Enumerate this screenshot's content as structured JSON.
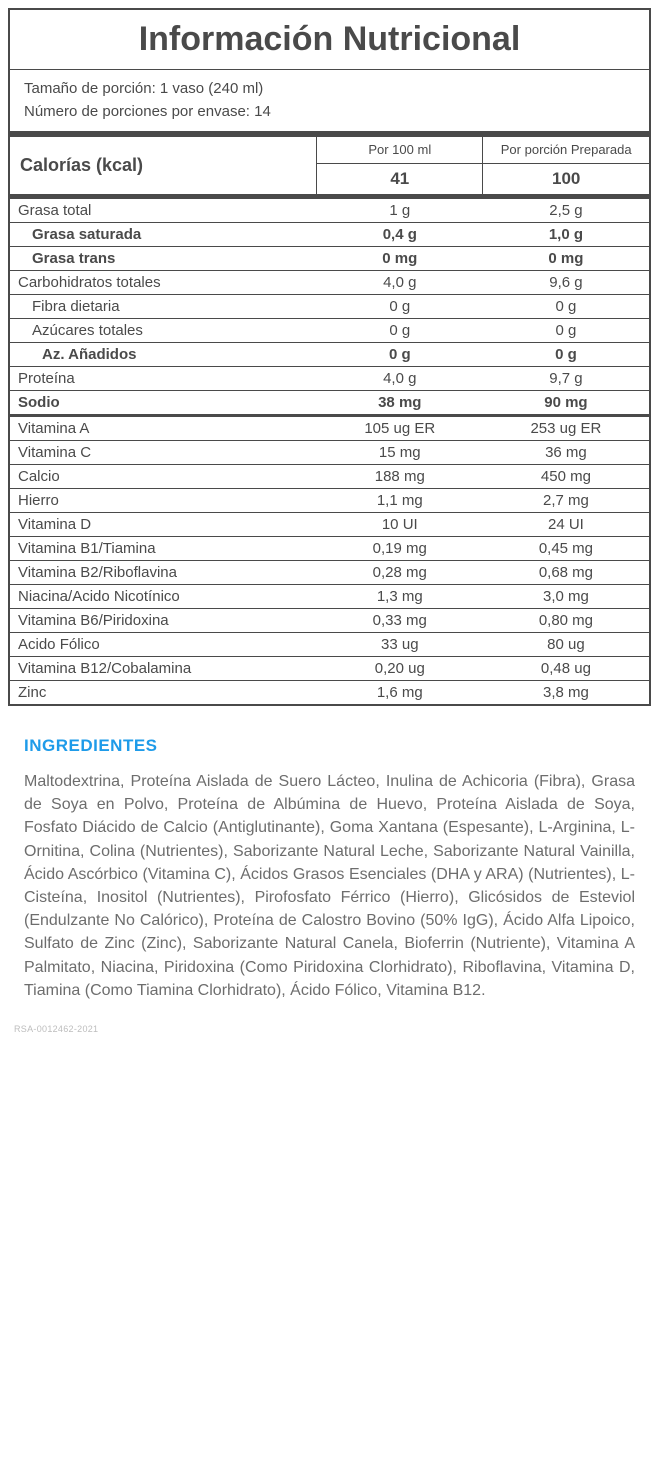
{
  "title": "Información Nutricional",
  "serving": {
    "size": "Tamaño de porción: 1 vaso (240 ml)",
    "count": "Número de porciones por envase: 14"
  },
  "calories": {
    "label": "Calorías (kcal)",
    "col1": "Por 100 ml",
    "col2": "Por porción Preparada",
    "v1": "41",
    "v2": "100"
  },
  "sections": [
    {
      "sep": "thick",
      "rows": [
        {
          "label": "Grasa total",
          "v1": "1 g",
          "v2": "2,5 g"
        },
        {
          "label": "Grasa saturada",
          "v1": "0,4 g",
          "v2": "1,0 g",
          "bold": true,
          "indent": 1
        },
        {
          "label": "Grasa trans",
          "v1": "0 mg",
          "v2": "0 mg",
          "bold": true,
          "indent": 1
        },
        {
          "label": "Carbohidratos totales",
          "v1": "4,0 g",
          "v2": "9,6 g"
        },
        {
          "label": "Fibra dietaria",
          "v1": "0 g",
          "v2": "0 g",
          "indent": 1
        },
        {
          "label": "Azúcares totales",
          "v1": "0 g",
          "v2": "0 g",
          "indent": 1
        },
        {
          "label": "Az. Añadidos",
          "v1": "0 g",
          "v2": "0 g",
          "bold": true,
          "indent": 2
        },
        {
          "label": "Proteína",
          "v1": "4,0 g",
          "v2": "9,7 g"
        },
        {
          "label": "Sodio",
          "v1": "38 mg",
          "v2": "90 mg",
          "bold": true
        }
      ]
    },
    {
      "sep": "med",
      "rows": [
        {
          "label": "Vitamina A",
          "v1": "105 ug ER",
          "v2": "253 ug ER"
        },
        {
          "label": "Vitamina C",
          "v1": "15 mg",
          "v2": "36 mg"
        },
        {
          "label": "Calcio",
          "v1": "188 mg",
          "v2": "450 mg"
        },
        {
          "label": "Hierro",
          "v1": "1,1 mg",
          "v2": "2,7 mg"
        },
        {
          "label": "Vitamina D",
          "v1": "10 UI",
          "v2": "24 UI"
        },
        {
          "label": "Vitamina B1/Tiamina",
          "v1": "0,19 mg",
          "v2": "0,45 mg"
        },
        {
          "label": "Vitamina B2/Riboflavina",
          "v1": "0,28 mg",
          "v2": "0,68 mg"
        },
        {
          "label": "Niacina/Acido Nicotínico",
          "v1": "1,3 mg",
          "v2": "3,0 mg"
        },
        {
          "label": "Vitamina B6/Piridoxina",
          "v1": "0,33 mg",
          "v2": "0,80 mg"
        },
        {
          "label": "Acido Fólico",
          "v1": "33 ug",
          "v2": "80 ug"
        },
        {
          "label": "Vitamina B12/Cobalamina",
          "v1": "0,20 ug",
          "v2": "0,48 ug"
        },
        {
          "label": "Zinc",
          "v1": "1,6 mg",
          "v2": "3,8 mg"
        }
      ]
    }
  ],
  "ingredients": {
    "title": "INGREDIENTES",
    "text": "Maltodextrina, Proteína Aislada de Suero Lácteo, Inulina de Achicoria (Fibra), Grasa de Soya en Polvo, Proteína de Albúmina de Huevo, Proteína Aislada de Soya, Fosfato Diácido de Calcio (Antiglutinante), Goma Xantana (Espesante), L-Arginina, L-Ornitina, Colina (Nutrientes), Saborizante Natural Leche, Saborizante Natural Vainilla, Ácido Ascórbico (Vitamina C), Ácidos Grasos Esenciales (DHA y ARA) (Nutrientes), L-Cisteína, Inositol (Nutrientes), Pirofosfato Férrico (Hierro), Glicósidos de Esteviol (Endulzante No Calórico), Proteína de Calostro Bovino (50% IgG), Ácido Alfa Lipoico, Sulfato de Zinc (Zinc), Saborizante Natural Canela, Bioferrin (Nutriente), Vitamina A Palmitato, Niacina, Piridoxina (Como Piridoxina Clorhidrato), Riboflavina, Vitamina D, Tiamina (Como Tiamina Clorhidrato), Ácido Fólico, Vitamina B12."
  },
  "code": "RSA-0012462-2021"
}
